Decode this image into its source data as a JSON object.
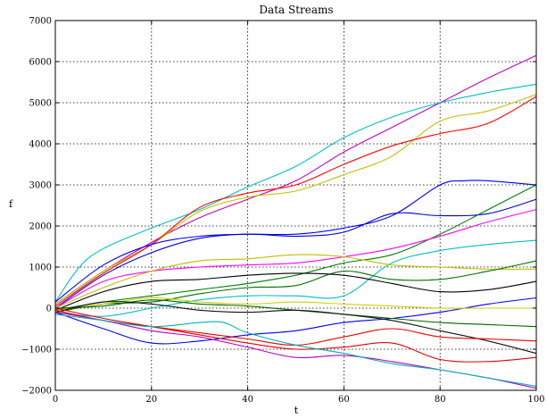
{
  "chart_data": {
    "type": "line",
    "title": "Data Streams",
    "xlabel": "t",
    "ylabel": "f",
    "xlim": [
      0,
      100
    ],
    "ylim": [
      -2000,
      7000
    ],
    "xticks": [
      0,
      20,
      40,
      60,
      80,
      100
    ],
    "yticks": [
      -2000,
      -1000,
      0,
      1000,
      2000,
      3000,
      4000,
      5000,
      6000,
      7000
    ],
    "grid": true,
    "series": [
      {
        "color": "#c000c0",
        "x": [
          0,
          10,
          20,
          30,
          40,
          50,
          60,
          70,
          80,
          90,
          100
        ],
        "y": [
          100,
          900,
          1600,
          2200,
          2650,
          3100,
          3800,
          4400,
          5000,
          5600,
          6150
        ]
      },
      {
        "color": "#00bfbf",
        "x": [
          0,
          5,
          10,
          20,
          30,
          40,
          50,
          60,
          70,
          80,
          90,
          100
        ],
        "y": [
          150,
          1000,
          1450,
          1950,
          2400,
          2950,
          3450,
          4150,
          4650,
          5000,
          5250,
          5450
        ]
      },
      {
        "color": "#c0c000",
        "x": [
          0,
          10,
          20,
          30,
          40,
          50,
          60,
          70,
          80,
          90,
          100
        ],
        "y": [
          100,
          900,
          1550,
          2350,
          2700,
          2850,
          3250,
          3700,
          4550,
          4800,
          5200
        ]
      },
      {
        "color": "#ff0000",
        "x": [
          0,
          10,
          20,
          30,
          40,
          50,
          60,
          70,
          80,
          90,
          100
        ],
        "y": [
          50,
          850,
          1550,
          2450,
          2800,
          3000,
          3500,
          3950,
          4250,
          4500,
          5150
        ]
      },
      {
        "color": "#0000ff",
        "x": [
          0,
          10,
          20,
          30,
          40,
          50,
          60,
          70,
          80,
          85,
          90,
          100
        ],
        "y": [
          150,
          1050,
          1550,
          1750,
          1800,
          1800,
          1950,
          2250,
          3000,
          3100,
          3100,
          3000
        ]
      },
      {
        "color": "#0000cd",
        "x": [
          0,
          10,
          20,
          30,
          40,
          50,
          60,
          70,
          80,
          90,
          100
        ],
        "y": [
          0,
          800,
          1350,
          1700,
          1800,
          1750,
          1850,
          2300,
          2250,
          2300,
          2650
        ]
      },
      {
        "color": "#008000",
        "x": [
          0,
          10,
          20,
          30,
          40,
          50,
          60,
          70,
          80,
          90,
          100
        ],
        "y": [
          -50,
          150,
          300,
          450,
          600,
          800,
          1100,
          1300,
          1800,
          2400,
          3000
        ]
      },
      {
        "color": "#ff00ff",
        "x": [
          0,
          10,
          20,
          30,
          40,
          50,
          60,
          70,
          80,
          90,
          100
        ],
        "y": [
          0,
          650,
          900,
          1000,
          1050,
          1100,
          1250,
          1450,
          1750,
          2100,
          2400
        ]
      },
      {
        "color": "#00c0c0",
        "x": [
          0,
          10,
          20,
          30,
          40,
          50,
          60,
          70,
          80,
          90,
          100
        ],
        "y": [
          -100,
          -200,
          0,
          200,
          300,
          300,
          300,
          1100,
          1400,
          1550,
          1650
        ]
      },
      {
        "color": "#bfbf00",
        "x": [
          0,
          10,
          20,
          30,
          40,
          50,
          60,
          70,
          80,
          90,
          100
        ],
        "y": [
          0,
          500,
          900,
          1150,
          1200,
          1300,
          1250,
          1050,
          1000,
          950,
          950
        ]
      },
      {
        "color": "#007000",
        "x": [
          0,
          10,
          20,
          30,
          40,
          50,
          60,
          70,
          80,
          90,
          100
        ],
        "y": [
          -100,
          100,
          150,
          350,
          500,
          550,
          900,
          700,
          700,
          900,
          1150
        ]
      },
      {
        "color": "#000000",
        "x": [
          0,
          10,
          20,
          30,
          40,
          50,
          60,
          70,
          80,
          90,
          100
        ],
        "y": [
          -50,
          400,
          650,
          700,
          800,
          850,
          800,
          600,
          400,
          450,
          650
        ]
      },
      {
        "color": "#0000ee",
        "x": [
          0,
          10,
          20,
          30,
          40,
          50,
          60,
          70,
          80,
          90,
          100
        ],
        "y": [
          -100,
          -500,
          -850,
          -800,
          -650,
          -550,
          -350,
          -250,
          -100,
          100,
          250
        ]
      },
      {
        "color": "#d0d000",
        "x": [
          0,
          10,
          20,
          30,
          40,
          50,
          60,
          70,
          80,
          90,
          100
        ],
        "y": [
          -50,
          100,
          250,
          150,
          100,
          150,
          100,
          50,
          0,
          0,
          0
        ]
      },
      {
        "color": "#006400",
        "x": [
          0,
          10,
          20,
          30,
          40,
          50,
          60,
          70,
          80,
          90,
          100
        ],
        "y": [
          0,
          50,
          200,
          100,
          50,
          -50,
          -150,
          -250,
          -350,
          -400,
          -450
        ]
      },
      {
        "color": "#111111",
        "x": [
          0,
          10,
          20,
          30,
          40,
          50,
          60,
          70,
          80,
          90,
          100
        ],
        "y": [
          -100,
          150,
          100,
          -50,
          -100,
          -50,
          -150,
          -300,
          -550,
          -800,
          -1100
        ]
      },
      {
        "color": "#ee0000",
        "x": [
          0,
          10,
          20,
          30,
          40,
          50,
          60,
          70,
          80,
          90,
          100
        ],
        "y": [
          -50,
          -300,
          -450,
          -600,
          -750,
          -900,
          -700,
          -500,
          -700,
          -750,
          -800
        ]
      },
      {
        "color": "#e00000",
        "x": [
          0,
          10,
          20,
          30,
          40,
          50,
          60,
          70,
          80,
          90,
          100
        ],
        "y": [
          0,
          -250,
          -450,
          -650,
          -850,
          -1000,
          -950,
          -850,
          -1250,
          -1300,
          -1200
        ]
      },
      {
        "color": "#bb00bb",
        "x": [
          0,
          10,
          20,
          30,
          40,
          50,
          60,
          70,
          80,
          90,
          100
        ],
        "y": [
          -100,
          -300,
          -550,
          -700,
          -950,
          -1200,
          -1150,
          -1300,
          -1500,
          -1700,
          -1950
        ]
      },
      {
        "color": "#00b4b4",
        "x": [
          0,
          10,
          20,
          30,
          35,
          40,
          50,
          60,
          70,
          80,
          90,
          100
        ],
        "y": [
          -150,
          -300,
          -450,
          -350,
          -350,
          -600,
          -900,
          -1100,
          -1350,
          -1500,
          -1700,
          -1900
        ]
      }
    ]
  }
}
